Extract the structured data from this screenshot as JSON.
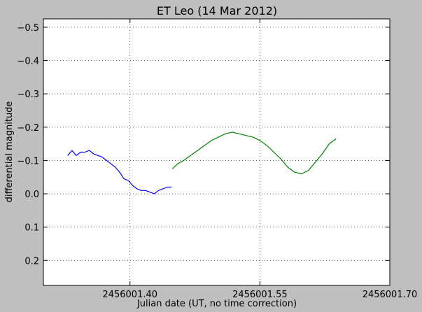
{
  "chart_data": {
    "type": "line",
    "title": "ET Leo (14 Mar 2012)",
    "xlabel": "Julian date (UT, no time correction)",
    "ylabel": "differential magnitude",
    "xlim": [
      2456001.3,
      2456001.7
    ],
    "ylim": [
      0.275,
      -0.525
    ],
    "y_inverted": true,
    "x_ticks": [
      2456001.4,
      2456001.55,
      2456001.7
    ],
    "x_tick_labels": [
      "2456001.40",
      "2456001.55",
      "2456001.70"
    ],
    "y_ticks": [
      -0.5,
      -0.4,
      -0.3,
      -0.2,
      -0.1,
      0.0,
      0.1,
      0.2
    ],
    "y_tick_labels": [
      "−0.5",
      "−0.4",
      "−0.3",
      "−0.2",
      "−0.1",
      "0.0",
      "0.1",
      "0.2"
    ],
    "grid": true,
    "series": [
      {
        "color": "#0000ff",
        "x": [
          2456001.328,
          2456001.333,
          2456001.338,
          2456001.343,
          2456001.348,
          2456001.353,
          2456001.358,
          2456001.363,
          2456001.368,
          2456001.373,
          2456001.378,
          2456001.383,
          2456001.388,
          2456001.393,
          2456001.398,
          2456001.403,
          2456001.408,
          2456001.413,
          2456001.418,
          2456001.423,
          2456001.428,
          2456001.433,
          2456001.438,
          2456001.443,
          2456001.448
        ],
        "y": [
          -0.115,
          -0.13,
          -0.115,
          -0.125,
          -0.125,
          -0.13,
          -0.12,
          -0.115,
          -0.11,
          -0.1,
          -0.09,
          -0.08,
          -0.065,
          -0.045,
          -0.04,
          -0.025,
          -0.015,
          -0.01,
          -0.01,
          -0.005,
          0.0,
          -0.01,
          -0.015,
          -0.02,
          -0.02
        ]
      },
      {
        "color": "#008000",
        "x": [
          2456001.449,
          2456001.455,
          2456001.462,
          2456001.47,
          2456001.478,
          2456001.486,
          2456001.494,
          2456001.502,
          2456001.51,
          2456001.518,
          2456001.526,
          2456001.534,
          2456001.542,
          2456001.55,
          2456001.558,
          2456001.566,
          2456001.574,
          2456001.582,
          2456001.59,
          2456001.598,
          2456001.606,
          2456001.614,
          2456001.622,
          2456001.63,
          2456001.638
        ],
        "y": [
          -0.075,
          -0.09,
          -0.1,
          -0.115,
          -0.13,
          -0.145,
          -0.16,
          -0.17,
          -0.18,
          -0.185,
          -0.18,
          -0.175,
          -0.17,
          -0.16,
          -0.145,
          -0.125,
          -0.105,
          -0.08,
          -0.065,
          -0.06,
          -0.07,
          -0.095,
          -0.12,
          -0.15,
          -0.165
        ]
      }
    ]
  }
}
